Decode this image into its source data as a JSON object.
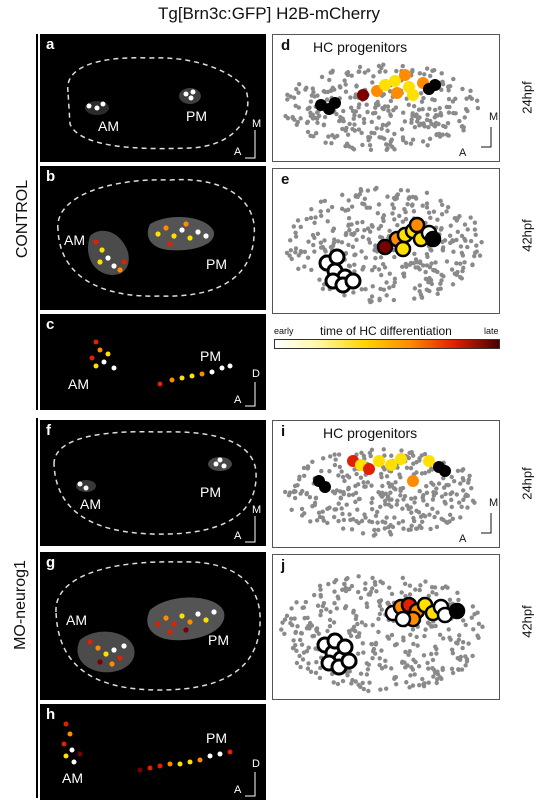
{
  "figure": {
    "title": "Tg[Brn3c:GFP] H2B-mCherry",
    "group_labels": {
      "control": "CONTROL",
      "mo": "MO-neurog1"
    },
    "panels": {
      "a": {
        "letter": "a",
        "am": "AM",
        "pm": "PM",
        "axis_a": "A",
        "axis_b": "M"
      },
      "b": {
        "letter": "b",
        "am": "AM",
        "pm": "PM"
      },
      "c": {
        "letter": "c",
        "am": "AM",
        "pm": "PM",
        "axis_a": "A",
        "axis_b": "D"
      },
      "d": {
        "letter": "d",
        "heading": "HC progenitors",
        "time": "24hpf",
        "axis_a": "A",
        "axis_b": "M"
      },
      "e": {
        "letter": "e",
        "time": "42hpf"
      },
      "f": {
        "letter": "f",
        "am": "AM",
        "pm": "PM",
        "axis_a": "A",
        "axis_b": "M"
      },
      "g": {
        "letter": "g",
        "am": "AM",
        "pm": "PM"
      },
      "h": {
        "letter": "h",
        "am": "AM",
        "pm": "PM",
        "axis_a": "A",
        "axis_b": "D"
      },
      "i": {
        "letter": "i",
        "heading": "HC progenitors",
        "time": "24hpf",
        "axis_a": "A",
        "axis_b": "M"
      },
      "j": {
        "letter": "j",
        "time": "42hpf"
      }
    },
    "legend": {
      "early": "early",
      "title": "time of HC differentiation",
      "late": "late"
    },
    "colors": {
      "white": "#ffffff",
      "yellow": "#ffe000",
      "orange": "#ff8c00",
      "red": "#e02000",
      "darkred": "#7a0000",
      "black": "#000000",
      "grey": "#8a8a8a"
    }
  }
}
